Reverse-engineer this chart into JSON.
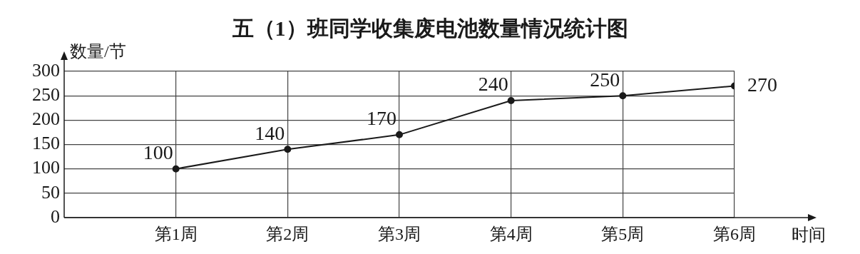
{
  "chart_data": {
    "type": "line",
    "title": "五（1）班同学收集废电池数量情况统计图",
    "xlabel": "时间",
    "ylabel": "数量/节",
    "categories": [
      "第1周",
      "第2周",
      "第3周",
      "第4周",
      "第5周",
      "第6周"
    ],
    "series": [
      {
        "color": "#1a1a1a",
        "values": [
          100,
          140,
          170,
          240,
          250,
          270
        ]
      }
    ],
    "ylim": [
      0,
      300
    ],
    "yticks": [
      0,
      50,
      100,
      150,
      200,
      250,
      300
    ],
    "grid": true,
    "marker": "circle",
    "line_style": "solid",
    "data_labels": true,
    "legend": false
  }
}
